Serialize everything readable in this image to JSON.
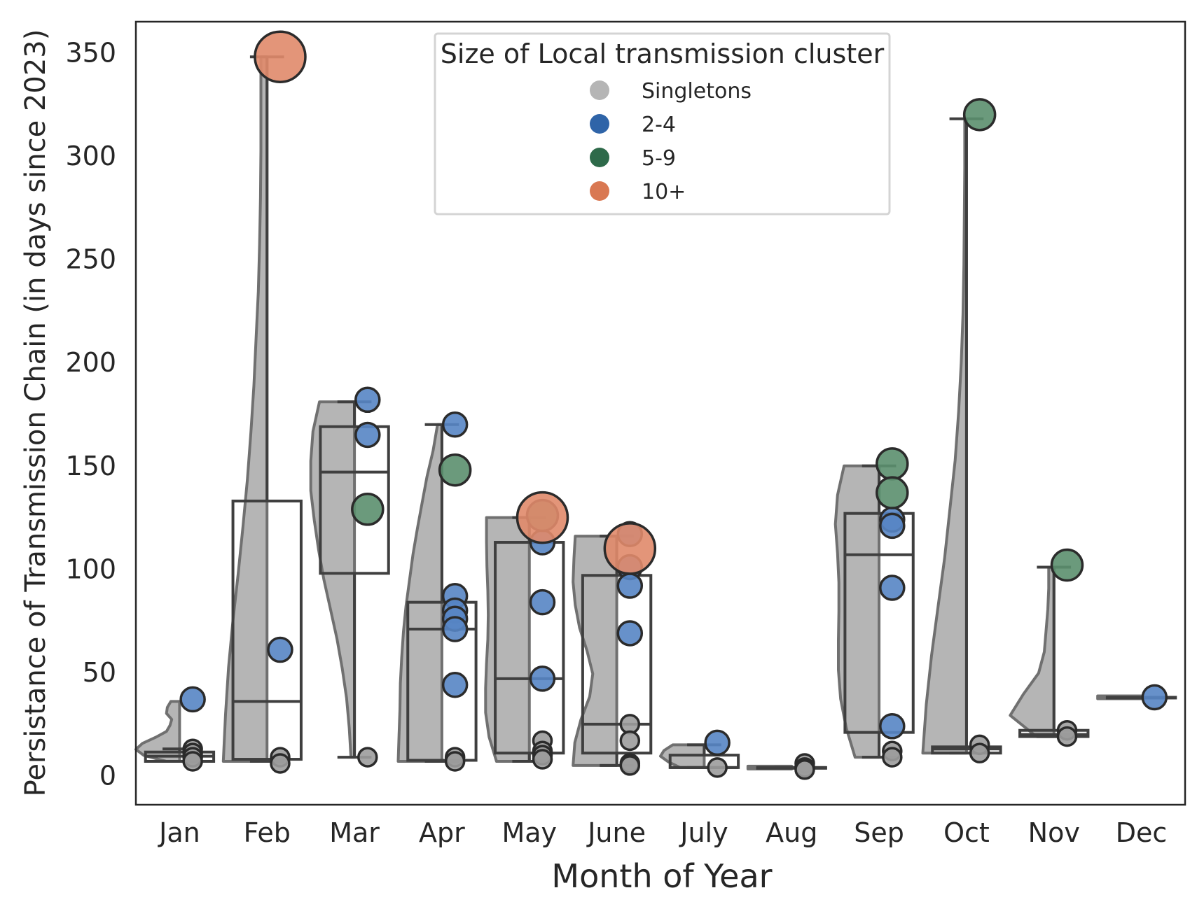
{
  "chart_data": {
    "type": "violin-box-strip",
    "xlabel": "Month of Year",
    "ylabel": "Persistance of Transmission Chain (in days since 2023)",
    "categories": [
      "Jan",
      "Feb",
      "Mar",
      "Apr",
      "May",
      "June",
      "July",
      "Aug",
      "Sep",
      "Oct",
      "Nov",
      "Dec"
    ],
    "ylim": [
      -14,
      365
    ],
    "yticks": [
      0,
      50,
      100,
      150,
      200,
      250,
      300,
      350
    ],
    "grid": false,
    "legend": {
      "title": "Size of Local transmission cluster",
      "placement": "top-center",
      "entries": [
        {
          "label": "Singletons",
          "color": "#b5b5b5"
        },
        {
          "label": "2-4",
          "color": "#2f64a8"
        },
        {
          "label": "5-9",
          "color": "#2e6a4a"
        },
        {
          "label": "10+",
          "color": "#d97852"
        }
      ]
    },
    "colors": {
      "violin": "#b5b5b5",
      "box_edge": "#3f3f3f",
      "singleton": "#9c9c9c",
      "size_2_4": "#5685c4",
      "size_5_9": "#5b8f6e",
      "size_10_plus": "#e0896a"
    },
    "boxes": [
      {
        "month": "Jan",
        "min": 7,
        "q1": 7,
        "median": 9.5,
        "q3": 11.5,
        "max": 13
      },
      {
        "month": "Feb",
        "min": 7,
        "q1": 8,
        "median": 36,
        "q3": 133,
        "max": 348
      },
      {
        "month": "Mar",
        "min": 9,
        "q1": 98,
        "median": 147,
        "q3": 169,
        "max": 181
      },
      {
        "month": "Apr",
        "min": 7,
        "q1": 7.5,
        "median": 71,
        "q3": 84,
        "max": 170
      },
      {
        "month": "May",
        "min": 7,
        "q1": 11,
        "median": 47,
        "q3": 113,
        "max": 125
      },
      {
        "month": "June",
        "min": 5,
        "q1": 11,
        "median": 25,
        "q3": 97,
        "max": 116
      },
      {
        "month": "July",
        "min": 4,
        "q1": 4,
        "median": 4,
        "q3": 10,
        "max": 15
      },
      {
        "month": "Aug",
        "min": 4,
        "q1": 4,
        "median": 4,
        "q3": 4,
        "max": 4
      },
      {
        "month": "Sep",
        "min": 9,
        "q1": 21,
        "median": 107,
        "q3": 127,
        "max": 150
      },
      {
        "month": "Oct",
        "min": 11,
        "q1": 11,
        "median": 13,
        "q3": 14,
        "max": 318
      },
      {
        "month": "Nov",
        "min": 19,
        "q1": 19,
        "median": 20,
        "q3": 22,
        "max": 101
      },
      {
        "month": "Dec",
        "min": 38,
        "q1": 38,
        "median": 38,
        "q3": 38,
        "max": 38
      }
    ],
    "violins": [
      {
        "month": "Jan",
        "min": 7,
        "max": 36,
        "width": [
          0.3,
          0.82,
          1.0,
          0.85,
          0.55,
          0.3,
          0.22,
          0.18,
          0.3,
          0.28,
          0.2
        ]
      },
      {
        "month": "Feb",
        "min": 7,
        "max": 348,
        "width": [
          1.0,
          0.95,
          0.88,
          0.78,
          0.66,
          0.55,
          0.45,
          0.37,
          0.3,
          0.25,
          0.2,
          0.17,
          0.15,
          0.14,
          0.14,
          0.14
        ]
      },
      {
        "month": "Mar",
        "min": 9,
        "max": 181,
        "width": [
          0.08,
          0.12,
          0.18,
          0.28,
          0.4,
          0.55,
          0.7,
          0.82,
          0.92,
          1.0,
          1.0,
          0.95,
          0.8
        ]
      },
      {
        "month": "Apr",
        "min": 7,
        "max": 170,
        "width": [
          1.0,
          0.98,
          0.96,
          0.95,
          0.92,
          0.88,
          0.82,
          0.74,
          0.66,
          0.56,
          0.45,
          0.34,
          0.2,
          0.1
        ]
      },
      {
        "month": "May",
        "min": 7,
        "max": 125,
        "width": [
          0.75,
          0.92,
          1.0,
          1.0,
          0.98,
          0.95,
          0.94,
          0.95,
          0.97,
          0.98,
          0.98
        ]
      },
      {
        "month": "June",
        "min": 5,
        "max": 116,
        "width": [
          1.0,
          0.96,
          0.82,
          0.62,
          0.55,
          0.68,
          0.85,
          0.95,
          1.0,
          0.98,
          0.95
        ]
      },
      {
        "month": "July",
        "min": 4,
        "max": 15,
        "width": [
          0.55,
          0.82,
          1.0,
          0.92,
          0.72
        ]
      },
      {
        "month": "Aug",
        "min": 4,
        "max": 4,
        "width": [
          1.0
        ]
      },
      {
        "month": "Sep",
        "min": 9,
        "max": 150,
        "width": [
          0.55,
          0.75,
          0.88,
          0.93,
          0.93,
          0.92,
          0.92,
          0.95,
          1.0,
          0.95,
          0.8
        ]
      },
      {
        "month": "Oct",
        "min": 11,
        "max": 318,
        "width": [
          1.0,
          0.92,
          0.8,
          0.65,
          0.5,
          0.38,
          0.26,
          0.18,
          0.12,
          0.08,
          0.06,
          0.05,
          0.04,
          0.04
        ]
      },
      {
        "month": "Nov",
        "min": 19,
        "max": 101,
        "width": [
          0.4,
          1.0,
          0.7,
          0.35,
          0.22,
          0.18,
          0.14,
          0.12,
          0.12
        ]
      },
      {
        "month": "Dec",
        "min": 38,
        "max": 38,
        "width": [
          1.0
        ]
      }
    ],
    "points": [
      {
        "month": "Jan",
        "y": 37,
        "group": "2-4"
      },
      {
        "month": "Jan",
        "y": 13,
        "group": "Singletons"
      },
      {
        "month": "Jan",
        "y": 11,
        "group": "Singletons"
      },
      {
        "month": "Jan",
        "y": 9,
        "group": "Singletons"
      },
      {
        "month": "Jan",
        "y": 7,
        "group": "Singletons"
      },
      {
        "month": "Feb",
        "y": 348,
        "group": "10+"
      },
      {
        "month": "Feb",
        "y": 61,
        "group": "2-4"
      },
      {
        "month": "Feb",
        "y": 9,
        "group": "Singletons"
      },
      {
        "month": "Feb",
        "y": 6,
        "group": "Singletons"
      },
      {
        "month": "Mar",
        "y": 182,
        "group": "2-4"
      },
      {
        "month": "Mar",
        "y": 165,
        "group": "2-4"
      },
      {
        "month": "Mar",
        "y": 129,
        "group": "5-9"
      },
      {
        "month": "Mar",
        "y": 9,
        "group": "Singletons"
      },
      {
        "month": "Apr",
        "y": 170,
        "group": "2-4"
      },
      {
        "month": "Apr",
        "y": 148,
        "group": "5-9"
      },
      {
        "month": "Apr",
        "y": 87,
        "group": "2-4"
      },
      {
        "month": "Apr",
        "y": 80,
        "group": "2-4"
      },
      {
        "month": "Apr",
        "y": 76,
        "group": "2-4"
      },
      {
        "month": "Apr",
        "y": 71,
        "group": "2-4"
      },
      {
        "month": "Apr",
        "y": 44,
        "group": "2-4"
      },
      {
        "month": "Apr",
        "y": 9,
        "group": "Singletons"
      },
      {
        "month": "Apr",
        "y": 7,
        "group": "Singletons"
      },
      {
        "month": "May",
        "y": 125,
        "group": "10+"
      },
      {
        "month": "May",
        "y": 126,
        "group": "5-9"
      },
      {
        "month": "May",
        "y": 113,
        "group": "2-4"
      },
      {
        "month": "May",
        "y": 84,
        "group": "2-4"
      },
      {
        "month": "May",
        "y": 47,
        "group": "2-4"
      },
      {
        "month": "May",
        "y": 17,
        "group": "Singletons"
      },
      {
        "month": "May",
        "y": 12,
        "group": "Singletons"
      },
      {
        "month": "May",
        "y": 10,
        "group": "Singletons"
      },
      {
        "month": "May",
        "y": 8,
        "group": "Singletons"
      },
      {
        "month": "June",
        "y": 117,
        "group": "2-4"
      },
      {
        "month": "June",
        "y": 110,
        "group": "10+"
      },
      {
        "month": "June",
        "y": 101,
        "group": "2-4"
      },
      {
        "month": "June",
        "y": 92,
        "group": "2-4"
      },
      {
        "month": "June",
        "y": 69,
        "group": "2-4"
      },
      {
        "month": "June",
        "y": 25,
        "group": "Singletons"
      },
      {
        "month": "June",
        "y": 17,
        "group": "Singletons"
      },
      {
        "month": "June",
        "y": 6,
        "group": "Singletons"
      },
      {
        "month": "June",
        "y": 5,
        "group": "Singletons"
      },
      {
        "month": "July",
        "y": 16,
        "group": "2-4"
      },
      {
        "month": "July",
        "y": 4,
        "group": "Singletons"
      },
      {
        "month": "Aug",
        "y": 6,
        "group": "Singletons"
      },
      {
        "month": "Aug",
        "y": 4,
        "group": "Singletons"
      },
      {
        "month": "Aug",
        "y": 3,
        "group": "Singletons"
      },
      {
        "month": "Sep",
        "y": 151,
        "group": "5-9"
      },
      {
        "month": "Sep",
        "y": 137,
        "group": "5-9"
      },
      {
        "month": "Sep",
        "y": 124,
        "group": "2-4"
      },
      {
        "month": "Sep",
        "y": 121,
        "group": "2-4"
      },
      {
        "month": "Sep",
        "y": 91,
        "group": "2-4"
      },
      {
        "month": "Sep",
        "y": 24,
        "group": "2-4"
      },
      {
        "month": "Sep",
        "y": 12,
        "group": "Singletons"
      },
      {
        "month": "Sep",
        "y": 9,
        "group": "Singletons"
      },
      {
        "month": "Oct",
        "y": 320,
        "group": "5-9"
      },
      {
        "month": "Oct",
        "y": 15,
        "group": "Singletons"
      },
      {
        "month": "Oct",
        "y": 11,
        "group": "Singletons"
      },
      {
        "month": "Nov",
        "y": 102,
        "group": "5-9"
      },
      {
        "month": "Nov",
        "y": 22,
        "group": "Singletons"
      },
      {
        "month": "Nov",
        "y": 19,
        "group": "Singletons"
      },
      {
        "month": "Dec",
        "y": 38,
        "group": "2-4"
      }
    ]
  }
}
